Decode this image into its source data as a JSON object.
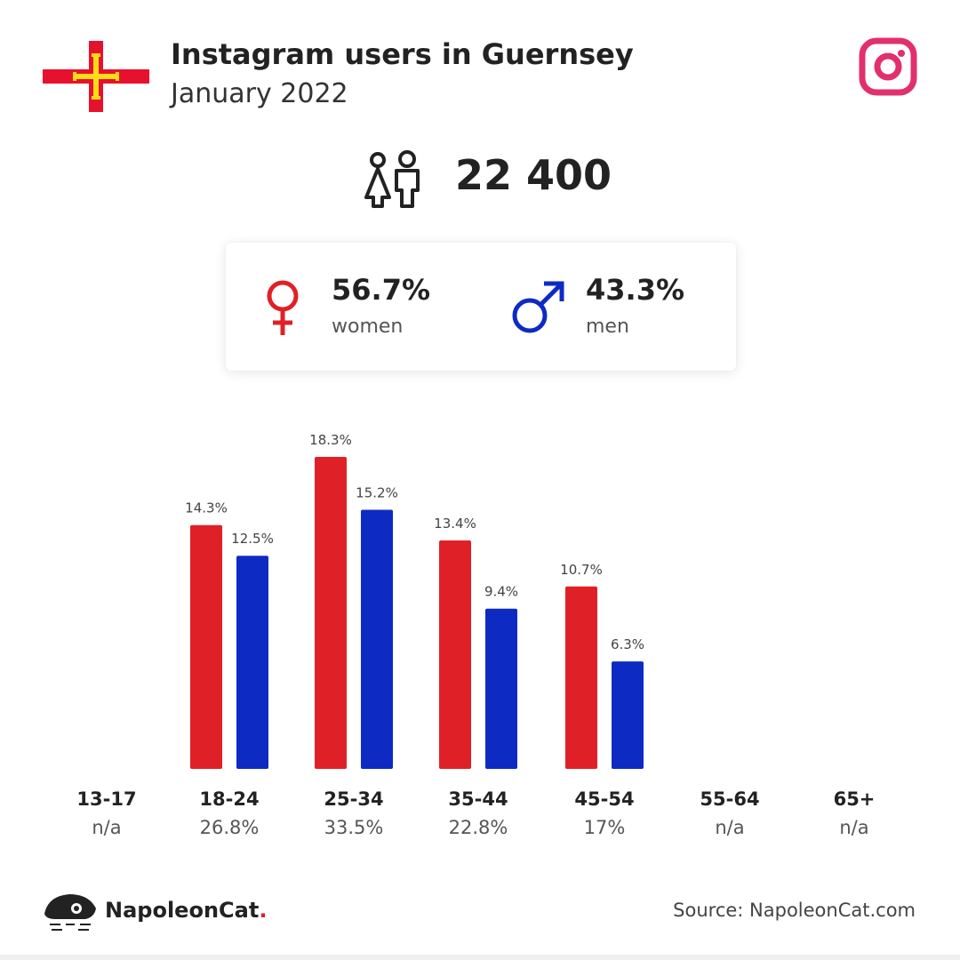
{
  "header": {
    "title": "Instagram users in Guernsey",
    "subtitle": "January 2022",
    "flag_icon": "guernsey-flag",
    "platform_icon": "instagram-icon"
  },
  "totals": {
    "users": "22 400",
    "people_icon": "people-icon"
  },
  "gender": {
    "women_pct": "56.7%",
    "women_label": "women",
    "men_pct": "43.3%",
    "men_label": "men"
  },
  "colors": {
    "women": "#e02027",
    "men": "#0d2bc3",
    "instagram": "#e1306c",
    "flag_red": "#e8112d",
    "flag_yellow": "#f9dd16"
  },
  "chart_data": {
    "type": "bar",
    "categories": [
      "13-17",
      "18-24",
      "25-34",
      "35-44",
      "45-54",
      "55-64",
      "65+"
    ],
    "category_totals": [
      "n/a",
      "26.8%",
      "33.5%",
      "22.8%",
      "17%",
      "n/a",
      "n/a"
    ],
    "series": [
      {
        "color": "#e02027",
        "values": [
          null,
          14.3,
          18.3,
          13.4,
          10.7,
          null,
          null
        ],
        "labels": [
          "",
          "14.3%",
          "18.3%",
          "13.4%",
          "10.7%",
          "",
          ""
        ]
      },
      {
        "color": "#0d2bc3",
        "values": [
          null,
          12.5,
          15.2,
          9.4,
          6.3,
          null,
          null
        ],
        "labels": [
          "",
          "12.5%",
          "15.2%",
          "9.4%",
          "6.3%",
          "",
          ""
        ]
      }
    ],
    "ylim": [
      0,
      18.3
    ],
    "grid": false
  },
  "footer": {
    "brand_name": "NapoleonCat",
    "brand_dot": ".",
    "source": "Source: NapoleonCat.com",
    "logo_icon": "napoleoncat-logo"
  }
}
